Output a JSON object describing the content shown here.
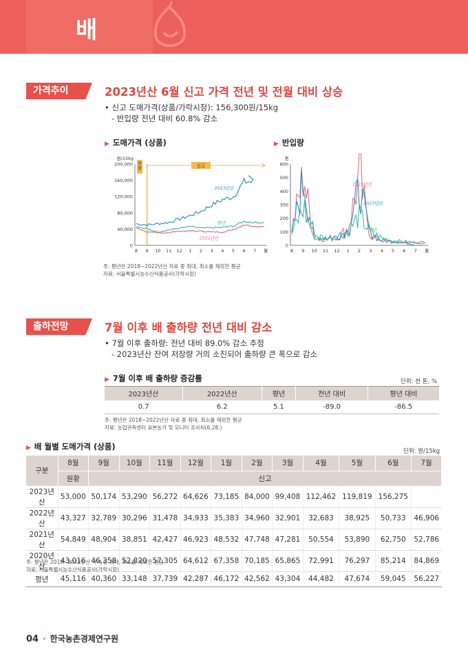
{
  "header": {
    "title": "배"
  },
  "section1": {
    "tag": "가격추이",
    "title": "2023년산 6월 신고 가격 전년 및 전월 대비 상승",
    "bullet1": "• 신고 도매가격(상품/가락시장): 156,300원/15kg",
    "bullet2": "- 반입량 전년 대비 60.8% 감소",
    "chart1_title": "도매가격 (상품)",
    "chart2_title": "반입량",
    "note1": "주: 평년은 2018~2022년산 자료 중 최대, 최소를 제외한 평균",
    "note2": "자료: 서울특별시농수산식품공사(가락시장)"
  },
  "chart_data": [
    {
      "type": "line",
      "title": "도매가격 (상품)",
      "ylabel": "원/15kg",
      "ylim": [
        0,
        200000
      ],
      "yticks": [
        "0",
        "40,000",
        "80,000",
        "120,000",
        "160,000",
        "200,000"
      ],
      "xticks": [
        "8",
        "9",
        "10",
        "11",
        "12",
        "1",
        "2",
        "3",
        "4",
        "5",
        "6",
        "7",
        "월"
      ],
      "band_labels": [
        "원황",
        "신고"
      ],
      "series": [
        {
          "name": "2023년산",
          "color": "#2f8fc6",
          "values": [
            53000,
            50174,
            53290,
            56272,
            64626,
            73185,
            84000,
            99408,
            112462,
            119819,
            156275
          ]
        },
        {
          "name": "2022년산",
          "color": "#ec6b78",
          "values": [
            43327,
            32789,
            30296,
            31478,
            34933,
            35383,
            34960,
            32901,
            32683,
            38925,
            50733,
            46906
          ]
        },
        {
          "name": "평년",
          "color": "#46b89a",
          "values": [
            45116,
            40360,
            33148,
            37739,
            42287,
            46172,
            42562,
            43304,
            44482,
            47674,
            59045,
            56227
          ]
        }
      ]
    },
    {
      "type": "line",
      "title": "반입량",
      "ylabel": "톤",
      "ylim": [
        0,
        600
      ],
      "yticks": [
        "0",
        "100",
        "200",
        "300",
        "400",
        "500",
        "600"
      ],
      "xticks": [
        "8",
        "9",
        "10",
        "11",
        "12",
        "1",
        "2",
        "3",
        "4",
        "5",
        "6",
        "7",
        "월"
      ],
      "series": [
        {
          "name": "2022년산",
          "color": "#ec6b78"
        },
        {
          "name": "2023년산",
          "color": "#2f8fc6"
        },
        {
          "name": "평년",
          "color": "#46b89a"
        }
      ]
    }
  ],
  "section2": {
    "tag": "출하전망",
    "title": "7월 이후 배 출하량 전년 대비 감소",
    "bullet1": "• 7월 이후 출하량: 전년 대비 89.0% 감소 추정",
    "bullet2": "- 2023년산 잔여 저장량 거의 소진되어 출하량 큰 폭으로 감소",
    "table_title": "7월 이후 배 출하량 증감률",
    "unit": "단위: 천 톤, %",
    "headers": [
      "2023년산",
      "2022년산",
      "평년",
      "전년 대비",
      "평년 대비"
    ],
    "row": [
      "0.7",
      "6.2",
      "5.1",
      "-89.0",
      "-86.5"
    ],
    "note1": "주: 평년은 2018~2022년산 자료 중 최대, 최소를 제외한 평균",
    "note2": "자료: 농업관측센터 표본농가 및 모니터 조사치(6.28.)"
  },
  "section3": {
    "table_title": "배 월별 도매가격 (상품)",
    "unit": "단위: 원/15kg",
    "corner": "구분",
    "months": [
      "8월",
      "9월",
      "10월",
      "11월",
      "12월",
      "1월",
      "2월",
      "3월",
      "4월",
      "5월",
      "6월",
      "7월"
    ],
    "variety1": "원황",
    "variety2": "신고",
    "rows": [
      {
        "label": "2023년산",
        "values": [
          "53,000",
          "50,174",
          "53,290",
          "56,272",
          "64,626",
          "73,185",
          "84,000",
          "99,408",
          "112,462",
          "119,819",
          "156,275",
          ""
        ]
      },
      {
        "label": "2022년산",
        "values": [
          "43,327",
          "32,789",
          "30,296",
          "31,478",
          "34,933",
          "35,383",
          "34,960",
          "32,901",
          "32,683",
          "38,925",
          "50,733",
          "46,906"
        ]
      },
      {
        "label": "2021년산",
        "values": [
          "54,849",
          "48,904",
          "38,851",
          "42,427",
          "46,923",
          "48,532",
          "47,748",
          "47,281",
          "50,554",
          "53,890",
          "62,750",
          "52,786"
        ]
      },
      {
        "label": "2020년산",
        "values": [
          "43,016",
          "46,358",
          "52,820",
          "57,305",
          "64,612",
          "67,358",
          "70,185",
          "65,865",
          "72,991",
          "76,297",
          "85,214",
          "84,869"
        ]
      },
      {
        "label": "평년",
        "values": [
          "45,116",
          "40,360",
          "33,148",
          "37,739",
          "42,287",
          "46,172",
          "42,562",
          "43,304",
          "44,482",
          "47,674",
          "59,045",
          "56,227"
        ]
      }
    ],
    "note1": "주: 평년은 2018~2022년산 가격 중 최대, 최소를 제외한 평균",
    "note2": "자료: 서울특별시농수산식품공사(가락시장)"
  },
  "footer": {
    "page": "04",
    "dot": "·",
    "org": "한국농촌경제연구원"
  }
}
